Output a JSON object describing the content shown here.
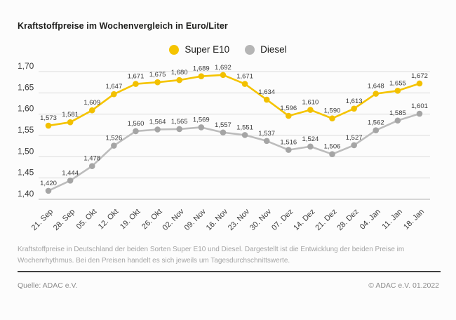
{
  "title": "Kraftstoffpreise im Wochenvergleich in Euro/Liter",
  "legend": [
    {
      "label": "Super E10",
      "color": "#f5c400"
    },
    {
      "label": "Diesel",
      "color": "#b5b5b5"
    }
  ],
  "chart_data": {
    "type": "line",
    "title": "Kraftstoffpreise im Wochenvergleich in Euro/Liter",
    "categories": [
      "21. Sep",
      "28. Sep",
      "05. Okt",
      "12. Okt",
      "19. Okt",
      "26. Okt",
      "02. Nov",
      "09. Nov",
      "16. Nov",
      "23. Nov",
      "30. Nov",
      "07. Dez",
      "14. Dez",
      "21. Dez",
      "28. Dez",
      "04. Jan",
      "11. Jan",
      "18. Jan"
    ],
    "series": [
      {
        "name": "Super E10",
        "color": "#f5c400",
        "marker_color": "#f2c000",
        "values": [
          1.573,
          1.581,
          1.609,
          1.647,
          1.671,
          1.675,
          1.68,
          1.689,
          1.692,
          1.671,
          1.634,
          1.596,
          1.61,
          1.59,
          1.613,
          1.648,
          1.655,
          1.672
        ]
      },
      {
        "name": "Diesel",
        "color": "#bcbcbc",
        "marker_color": "#a5a5a5",
        "values": [
          1.42,
          1.444,
          1.478,
          1.526,
          1.56,
          1.564,
          1.565,
          1.569,
          1.557,
          1.551,
          1.537,
          1.516,
          1.524,
          1.506,
          1.527,
          1.562,
          1.585,
          1.601
        ]
      }
    ],
    "ylim": [
      1.4,
      1.7
    ],
    "ytick_step": 0.05,
    "decimal_separator": ",",
    "value_label_decimals": 3,
    "ytick_decimals": 2,
    "grid": "horizontal",
    "legend_position": "top-center",
    "grid_color": "#dddddd",
    "axis_color": "#bfbfbf"
  },
  "footnote": "Kraftstoffpreise in Deutschland der beiden Sorten Super E10 und Diesel. Dargestellt ist die Entwicklung der beiden Preise im Wochenrhythmus. Bei den Preisen handelt es sich jeweils um Tagesdurchschnittswerte.",
  "source": "Quelle: ADAC e.V.",
  "copyright": "© ADAC e.V. 01.2022"
}
